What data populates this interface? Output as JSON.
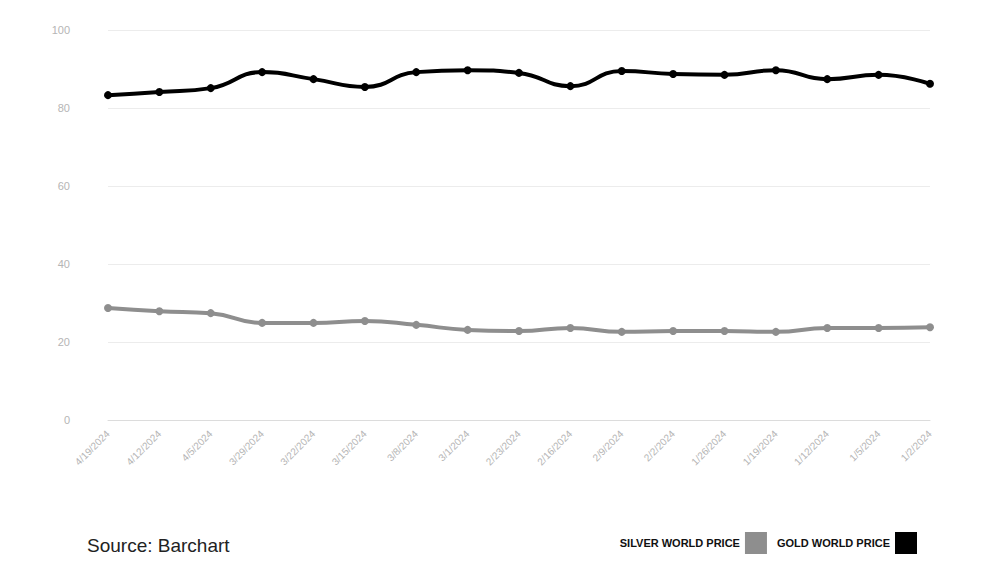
{
  "chart_data": {
    "type": "line",
    "categories": [
      "4/19/2024",
      "4/12/2024",
      "4/5/2024",
      "3/29/2024",
      "3/22/2024",
      "3/15/2024",
      "3/8/2024",
      "3/1/2024",
      "2/23/2024",
      "2/16/2024",
      "2/9/2024",
      "2/2/2024",
      "1/26/2024",
      "1/19/2024",
      "1/12/2024",
      "1/5/2024",
      "1/2/2024"
    ],
    "series": [
      {
        "name": "SILVER WORLD PRICE",
        "color": "#8e8e8e",
        "marker": "circle",
        "values": [
          28.7,
          27.9,
          27.4,
          24.9,
          24.9,
          25.4,
          24.4,
          23.1,
          22.8,
          23.6,
          22.6,
          22.8,
          22.8,
          22.6,
          23.6,
          23.6,
          23.8
        ]
      },
      {
        "name": "GOLD WORLD PRICE",
        "color": "#000000",
        "marker": "circle",
        "values": [
          83.3,
          84.1,
          85.1,
          89.2,
          87.4,
          85.4,
          89.2,
          89.7,
          89.0,
          85.6,
          89.5,
          88.7,
          88.5,
          89.7,
          87.4,
          88.5,
          86.2
        ]
      }
    ],
    "ylim": [
      0,
      100
    ],
    "yticks": [
      0,
      20,
      40,
      60,
      80,
      100
    ],
    "grid": true,
    "legend": "bottom right",
    "annotations": [
      "Source: Barchart"
    ]
  }
}
